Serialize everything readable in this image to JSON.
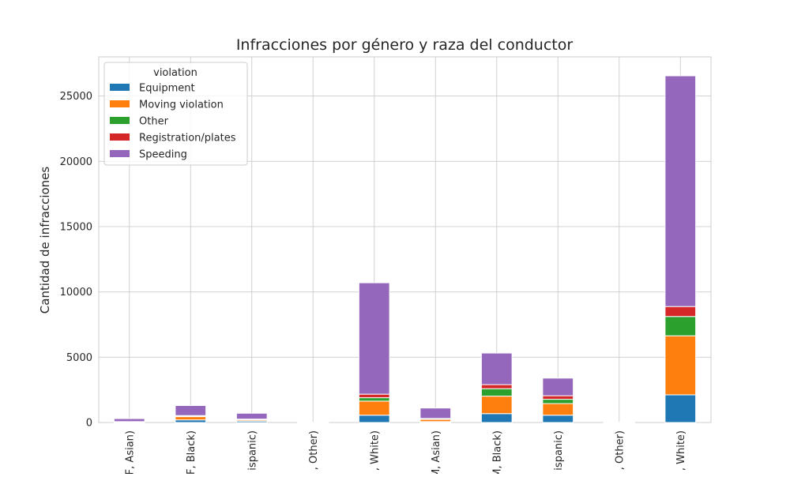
{
  "chart_data": {
    "type": "bar",
    "stacked": true,
    "title": "Infracciones por género y raza del conductor",
    "xlabel": "",
    "ylabel": "Cantidad de infracciones",
    "ylim": [
      0,
      28000
    ],
    "yticks": [
      0,
      5000,
      10000,
      15000,
      20000,
      25000
    ],
    "grid": true,
    "legend": {
      "title": "violation",
      "placement": "top-left"
    },
    "categories": [
      "F, Asian)",
      "F, Black)",
      "ispanic)",
      ", Other)",
      ", White)",
      "M, Asian)",
      "M, Black)",
      "ispanic)",
      ", Other)",
      ", White)"
    ],
    "series": [
      {
        "name": "Equipment",
        "color": "#1f77b4",
        "values": [
          30,
          200,
          110,
          5,
          560,
          70,
          680,
          560,
          5,
          2120
        ]
      },
      {
        "name": "Moving violation",
        "color": "#ff7f0e",
        "values": [
          30,
          250,
          90,
          3,
          1080,
          170,
          1340,
          890,
          3,
          4520
        ]
      },
      {
        "name": "Other",
        "color": "#2ca02c",
        "values": [
          5,
          20,
          20,
          2,
          260,
          20,
          570,
          330,
          2,
          1480
        ]
      },
      {
        "name": "Registration/plates",
        "color": "#d62728",
        "values": [
          5,
          60,
          40,
          2,
          270,
          50,
          310,
          270,
          2,
          760
        ]
      },
      {
        "name": "Speeding",
        "color": "#9467bd",
        "values": [
          230,
          770,
          450,
          8,
          8530,
          800,
          2420,
          1350,
          8,
          17670
        ]
      }
    ]
  }
}
